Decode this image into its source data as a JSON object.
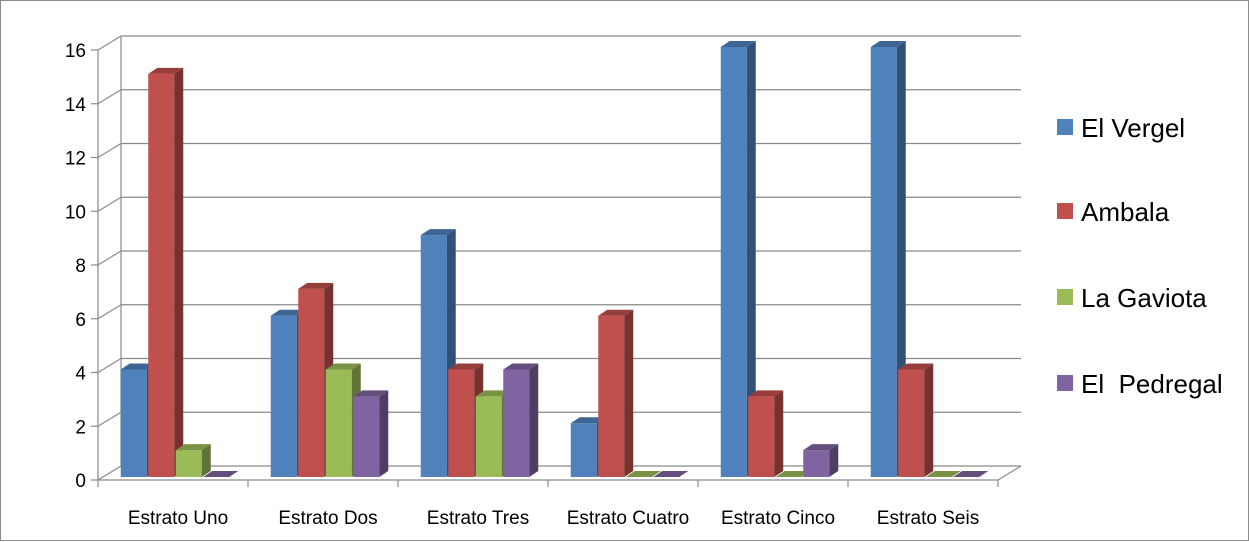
{
  "chart_data": {
    "type": "bar",
    "style": "3d-clustered-column",
    "categories": [
      "Estrato Uno",
      "Estrato Dos",
      "Estrato Tres",
      "Estrato Cuatro",
      "Estrato Cinco",
      "Estrato Seis"
    ],
    "series": [
      {
        "name": "El Vergel",
        "color": "#4F81BD",
        "values": [
          4,
          6,
          9,
          2,
          16,
          16
        ]
      },
      {
        "name": "Ambala",
        "color": "#C0504D",
        "values": [
          15,
          7,
          4,
          6,
          3,
          4
        ]
      },
      {
        "name": "La Gaviota",
        "color": "#9BBB59",
        "values": [
          1,
          4,
          3,
          0,
          0,
          0
        ]
      },
      {
        "name": "El  Pedregal",
        "color": "#8064A2",
        "values": [
          0,
          3,
          4,
          0,
          1,
          0
        ]
      }
    ],
    "yticks": [
      "0",
      "2",
      "4",
      "6",
      "8",
      "10",
      "12",
      "14",
      "16"
    ],
    "ylim": [
      0,
      16
    ],
    "grid": true,
    "legend_position": "right"
  }
}
